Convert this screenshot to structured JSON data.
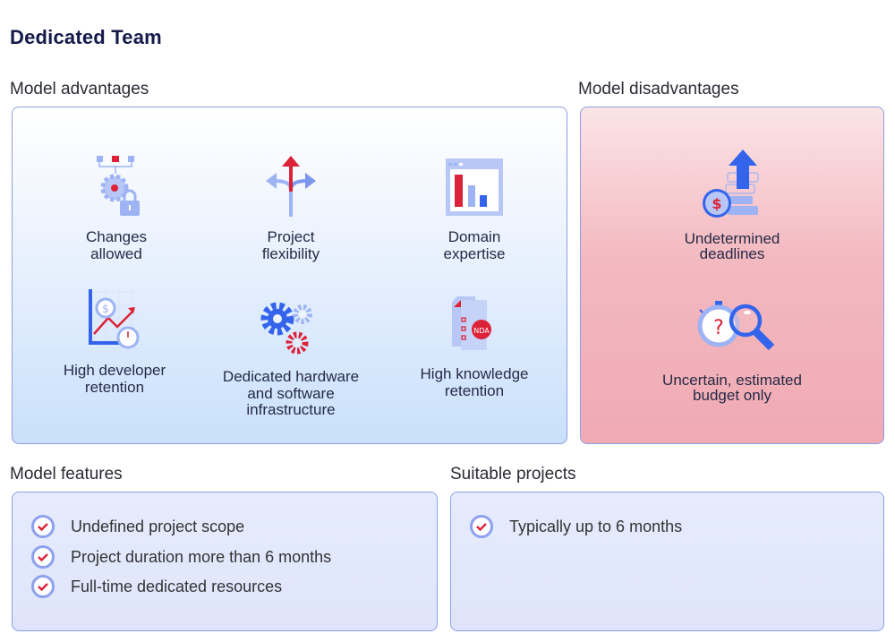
{
  "title": "Dedicated Team",
  "advantages": {
    "heading": "Model advantages",
    "items": [
      {
        "label": "Changes allowed",
        "icon": "gear-lock-icon"
      },
      {
        "label": "Project flexibility",
        "icon": "split-arrows-icon"
      },
      {
        "label": "Domain expertise",
        "icon": "bar-chart-window-icon"
      },
      {
        "label": "High developer retention",
        "icon": "growth-chart-clock-icon"
      },
      {
        "label": "Dedicated hardware and software infrastructure",
        "icon": "gears-icon"
      },
      {
        "label": "High knowledge retention",
        "icon": "nda-document-icon"
      }
    ]
  },
  "disadvantages": {
    "heading": "Model disadvantages",
    "items": [
      {
        "label": "Undetermined deadlines",
        "icon": "coins-arrow-up-icon"
      },
      {
        "label": "Uncertain, estimated budget only",
        "icon": "stopwatch-magnifier-icon"
      }
    ]
  },
  "features": {
    "heading": "Model features",
    "items": [
      "Undefined project scope",
      "Project duration more than 6 months",
      "Full-time dedicated resources"
    ]
  },
  "suitable": {
    "heading": "Suitable projects",
    "items": [
      "Typically up to 6 months"
    ]
  },
  "colors": {
    "red": "#dc2238",
    "blue": "#3464ec",
    "light_blue": "#9db3f3",
    "navy": "#141a4a"
  }
}
